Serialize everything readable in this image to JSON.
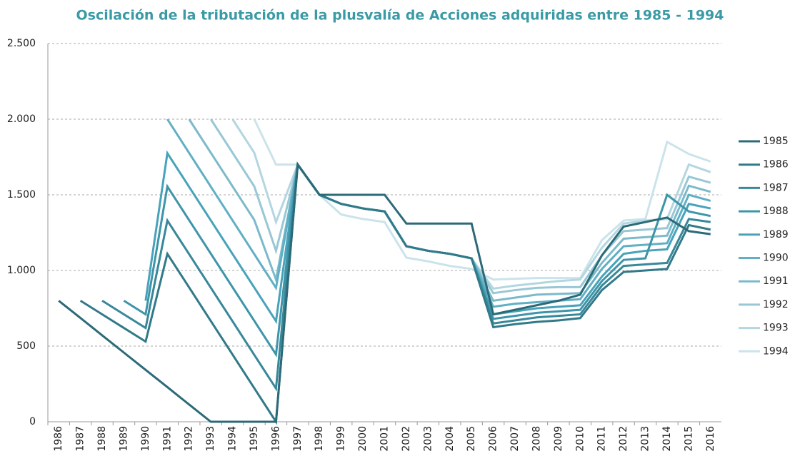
{
  "chart_data": {
    "type": "line",
    "title": "Oscilación de la tributación de  la plusvalía de Acciones adquiridas entre 1985  - 1994",
    "categories": [
      "1986",
      "1987",
      "1988",
      "1989",
      "1990",
      "1991",
      "1992",
      "1993",
      "1994",
      "1995",
      "1996",
      "1997",
      "1998",
      "1999",
      "2000",
      "2001",
      "2002",
      "2003",
      "2004",
      "2005",
      "2006",
      "2007",
      "2008",
      "2009",
      "2010",
      "2011",
      "2012",
      "2013",
      "2014",
      "2015",
      "2016"
    ],
    "ylim": [
      0,
      2500
    ],
    "yticks": [
      0,
      500,
      {
        "value": 1000,
        "label": "1.000"
      },
      {
        "value": 1500,
        "label": "1.500"
      },
      {
        "value": 2000,
        "label": "2.000"
      },
      {
        "value": 2500,
        "label": "2.500"
      }
    ],
    "grid": true,
    "legend": "right",
    "series": [
      {
        "name": "1985",
        "color": "#2d6a78",
        "values": [
          800,
          686,
          571,
          457,
          343,
          229,
          114,
          0,
          0,
          0,
          0,
          1700,
          1500,
          1500,
          1500,
          1500,
          1310,
          1310,
          1310,
          1310,
          710,
          740,
          770,
          800,
          840,
          1100,
          1290,
          1320,
          1350,
          1260,
          1240
        ]
      },
      {
        "name": "1986",
        "color": "#327a89",
        "values": [
          null,
          800,
          710,
          620,
          530,
          1110,
          888,
          666,
          444,
          222,
          0,
          1700,
          1500,
          1440,
          1410,
          1390,
          1160,
          1130,
          1110,
          1080,
          625,
          645,
          660,
          670,
          685,
          870,
          990,
          1000,
          1010,
          1300,
          1270
        ]
      },
      {
        "name": "1987",
        "color": "#38889a",
        "values": [
          null,
          null,
          800,
          710,
          620,
          1330,
          1108,
          886,
          664,
          442,
          220,
          1700,
          1500,
          1440,
          1410,
          1390,
          1160,
          1130,
          1110,
          1080,
          650,
          670,
          690,
          700,
          710,
          900,
          1030,
          1040,
          1050,
          1340,
          1320
        ]
      },
      {
        "name": "1988",
        "color": "#3e95a9",
        "values": [
          null,
          null,
          null,
          800,
          710,
          1555,
          1333,
          1111,
          889,
          667,
          445,
          1700,
          1500,
          1440,
          1410,
          1390,
          1160,
          1130,
          1110,
          1080,
          680,
          700,
          720,
          730,
          740,
          930,
          1070,
          1080,
          1500,
          1390,
          1360
        ]
      },
      {
        "name": "1989",
        "color": "#48a3ba",
        "values": [
          null,
          null,
          null,
          null,
          800,
          1775,
          1553,
          1331,
          1109,
          887,
          665,
          1700,
          1500,
          1440,
          1410,
          1390,
          1160,
          1130,
          1110,
          1080,
          710,
          730,
          750,
          760,
          770,
          960,
          1110,
          1130,
          1140,
          1440,
          1410
        ]
      },
      {
        "name": "1990",
        "color": "#60afc4",
        "values": [
          null,
          null,
          null,
          null,
          null,
          2000,
          1777,
          1554,
          1331,
          1108,
          885,
          1700,
          1500,
          1440,
          1410,
          1390,
          1160,
          1130,
          1110,
          1080,
          760,
          780,
          790,
          800,
          810,
          1010,
          1160,
          1170,
          1180,
          1500,
          1460
        ]
      },
      {
        "name": "1991",
        "color": "#7cbacb",
        "values": [
          null,
          null,
          null,
          null,
          null,
          null,
          2000,
          1778,
          1556,
          1334,
          940,
          1700,
          1500,
          1440,
          1410,
          1390,
          1160,
          1130,
          1110,
          1080,
          800,
          820,
          840,
          845,
          850,
          1050,
          1210,
          1220,
          1230,
          1560,
          1520
        ]
      },
      {
        "name": "1992",
        "color": "#98c7d5",
        "values": [
          null,
          null,
          null,
          null,
          null,
          null,
          null,
          2000,
          1778,
          1556,
          1130,
          1700,
          1500,
          1440,
          1410,
          1390,
          1160,
          1130,
          1110,
          1080,
          850,
          870,
          885,
          890,
          890,
          1100,
          1260,
          1270,
          1280,
          1620,
          1580
        ]
      },
      {
        "name": "1993",
        "color": "#b3d6e0",
        "values": [
          null,
          null,
          null,
          null,
          null,
          null,
          null,
          null,
          2000,
          1778,
          1320,
          1700,
          1500,
          1440,
          1410,
          1390,
          1160,
          1130,
          1110,
          1080,
          880,
          900,
          915,
          930,
          940,
          1150,
          1310,
          1330,
          1340,
          1700,
          1650
        ]
      },
      {
        "name": "1994",
        "color": "#cbe3ea",
        "values": [
          null,
          null,
          null,
          null,
          null,
          null,
          null,
          null,
          null,
          2000,
          1700,
          1700,
          1500,
          1370,
          1340,
          1320,
          1085,
          1060,
          1030,
          1010,
          940,
          945,
          950,
          950,
          950,
          1200,
          1330,
          1340,
          1850,
          1770,
          1720
        ]
      }
    ]
  }
}
